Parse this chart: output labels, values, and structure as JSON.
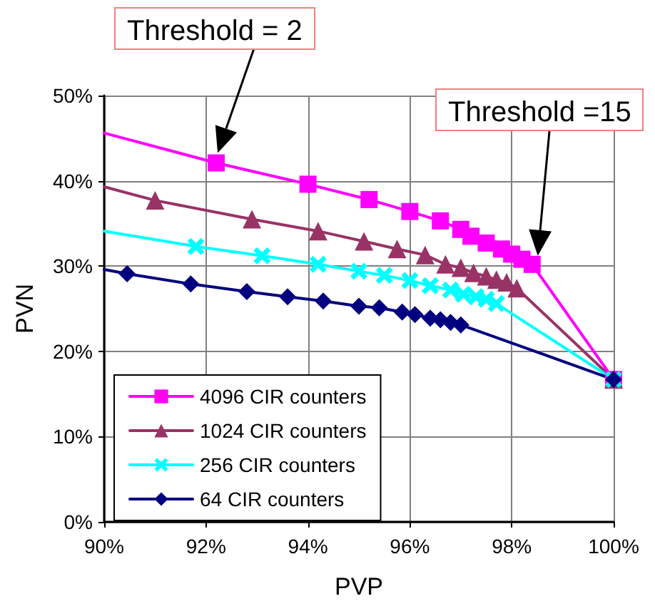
{
  "chart_data": {
    "type": "line",
    "xlabel": "PVP",
    "ylabel": "PVN",
    "xlim": [
      90,
      100
    ],
    "xticks": [
      {
        "value": 90,
        "label": "90%"
      },
      {
        "value": 92,
        "label": "92%"
      },
      {
        "value": 94,
        "label": "94%"
      },
      {
        "value": 96,
        "label": "96%"
      },
      {
        "value": 98,
        "label": "98%"
      },
      {
        "value": 100,
        "label": "100%"
      }
    ],
    "ylim": [
      0,
      50
    ],
    "yticks": [
      {
        "value": 0,
        "label": "0%"
      },
      {
        "value": 10,
        "label": "10%"
      },
      {
        "value": 20,
        "label": "20%"
      },
      {
        "value": 30,
        "label": "30%"
      },
      {
        "value": 40,
        "label": "40%"
      },
      {
        "value": 50,
        "label": "50%"
      }
    ],
    "grid": true,
    "legend": "bottom left",
    "annotations": [
      "Threshold = 2",
      "Threshold =15"
    ],
    "series": [
      {
        "name": "4096 CIR counters",
        "color": "#ff00ff",
        "marker": "square",
        "x": [
          90,
          92.2,
          94.0,
          95.2,
          96.0,
          96.6,
          97.0,
          97.2,
          97.5,
          97.8,
          98.0,
          98.2,
          98.4,
          100
        ],
        "values": [
          45.6,
          42.1,
          39.6,
          37.8,
          36.4,
          35.3,
          34.3,
          33.5,
          32.7,
          32.0,
          31.4,
          30.8,
          30.2,
          16.7
        ]
      },
      {
        "name": "1024 CIR counters",
        "color": "#993366",
        "marker": "triangle",
        "x": [
          90,
          91.0,
          92.9,
          94.2,
          95.1,
          95.75,
          96.3,
          96.7,
          97.0,
          97.25,
          97.5,
          97.7,
          97.9,
          98.1,
          100
        ],
        "values": [
          39.3,
          37.7,
          35.5,
          34.1,
          32.9,
          32.0,
          31.3,
          30.2,
          29.8,
          29.2,
          28.8,
          28.4,
          28.1,
          27.4,
          16.7
        ]
      },
      {
        "name": "256 CIR counters",
        "color": "#00ffff",
        "marker": "cross",
        "x": [
          90,
          91.8,
          93.1,
          94.2,
          95.0,
          95.5,
          96.0,
          96.4,
          96.8,
          97.05,
          97.3,
          97.5,
          97.7,
          100
        ],
        "values": [
          34.1,
          32.3,
          31.2,
          30.2,
          29.4,
          28.9,
          28.3,
          27.7,
          27.2,
          26.7,
          26.4,
          26.1,
          25.6,
          16.7
        ]
      },
      {
        "name": "64 CIR counters",
        "color": "#000080",
        "marker": "diamond",
        "x": [
          90,
          90.45,
          91.7,
          92.8,
          93.6,
          94.3,
          95.0,
          95.4,
          95.85,
          96.1,
          96.4,
          96.6,
          96.8,
          97.0,
          100
        ],
        "values": [
          29.6,
          29.1,
          27.9,
          27.0,
          26.4,
          25.9,
          25.3,
          25.1,
          24.6,
          24.3,
          23.9,
          23.7,
          23.4,
          23.1,
          16.7
        ]
      }
    ]
  }
}
